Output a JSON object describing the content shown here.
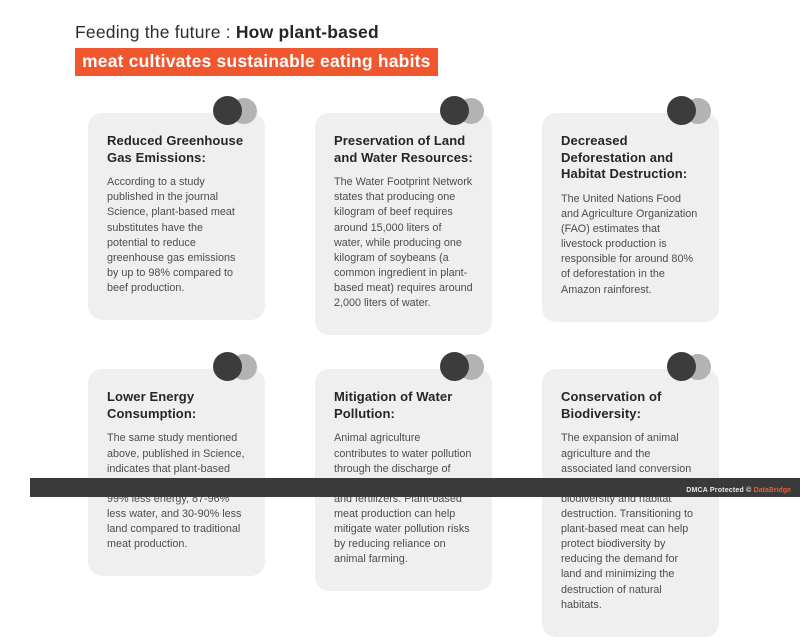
{
  "header": {
    "title_regular": "Feeding the future : ",
    "title_bold": "How plant-based",
    "title_highlight": "meat cultivates sustainable eating habits"
  },
  "colors": {
    "accent_orange": "#F1572E",
    "card_background": "#EFEFEF",
    "circle_dark": "#3C3C3C",
    "circle_light": "#B3B3B3",
    "footer_bar": "#3A3A3A"
  },
  "cards": [
    {
      "title": "Reduced Greenhouse Gas Emissions:",
      "body": "According to a study published in the journal Science, plant-based meat substitutes have the potential to reduce greenhouse gas emissions by up to 98% compared to beef production."
    },
    {
      "title": "Preservation of Land and Water Resources:",
      "body": "The Water Footprint Network states that producing one kilogram of beef requires around 15,000 liters of water, while producing one kilogram of soybeans (a common ingredient in plant-based meat) requires around 2,000 liters of water."
    },
    {
      "title": "Decreased Deforestation and Habitat Destruction:",
      "body": "The United Nations Food and Agriculture Organization (FAO) estimates that livestock production is responsible for around 80% of deforestation in the Amazon rainforest."
    },
    {
      "title": "Lower Energy Consumption:",
      "body": "The same study mentioned above, published in Science, indicates that plant-based meat production requires 72-99% less energy, 87-96% less water, and 30-90% less land compared to traditional meat production."
    },
    {
      "title": "Mitigation of Water Pollution:",
      "body": "Animal agriculture contributes to water pollution through the discharge of animal waste, antibiotics, and fertilizers. Plant-based meat production can help mitigate water pollution risks by reducing reliance on animal farming."
    },
    {
      "title": "Conservation of Biodiversity:",
      "body": "The expansion of animal agriculture and the associated land conversion have led to the loss of biodiversity and habitat destruction. Transitioning to plant-based meat can help protect biodiversity by reducing the demand for land and minimizing the destruction of natural habitats."
    }
  ],
  "footer": {
    "dmca_text": "DMCA Protected © ",
    "brand": "DataBridge"
  }
}
